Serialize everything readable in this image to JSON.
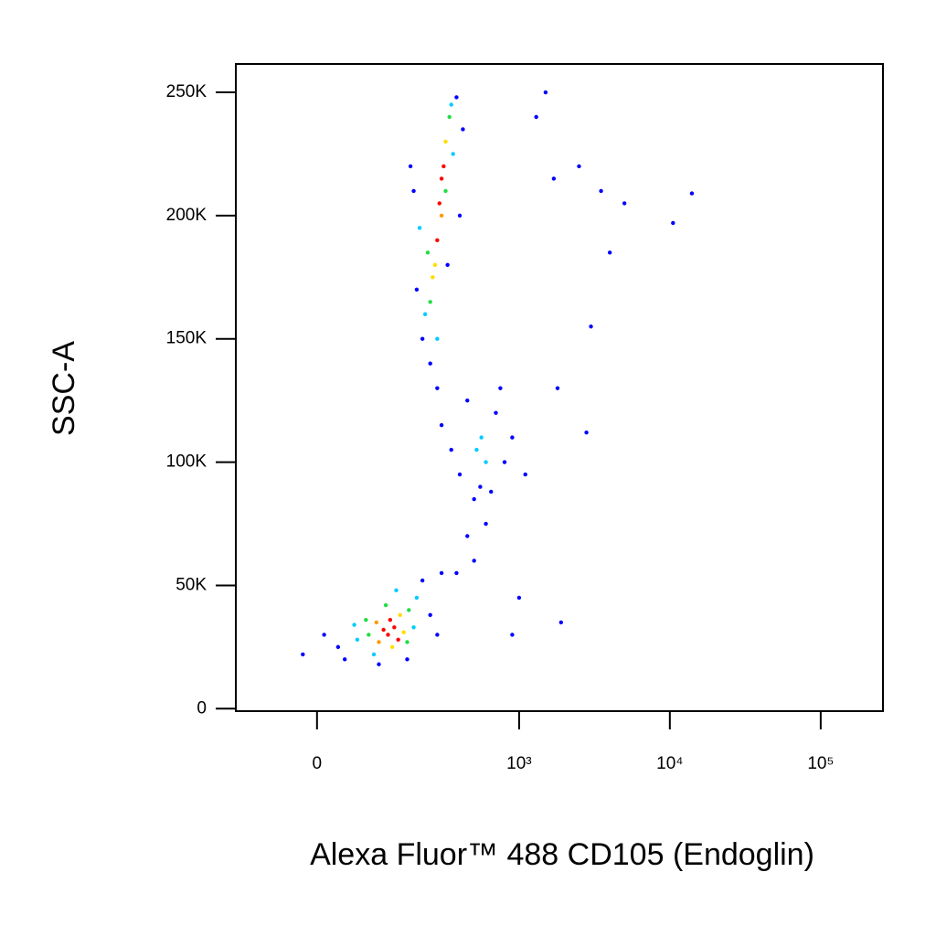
{
  "chart_data": {
    "type": "scatter",
    "xlabel": "Alexa Fluor™ 488 CD105 (Endoglin)",
    "ylabel": "SSC-A",
    "xscale": "biexponential",
    "xlim": [
      -145,
      258700
    ],
    "ylim": [
      -1000,
      261500
    ],
    "xticks": [
      0,
      {
        "value": 1000,
        "label": "10³"
      },
      {
        "value": 10000,
        "label": "10⁴"
      },
      {
        "value": 100000,
        "label": "10⁵"
      }
    ],
    "yticks": [
      0,
      {
        "value": 50000,
        "label": "50K"
      },
      {
        "value": 100000,
        "label": "100K"
      },
      {
        "value": 150000,
        "label": "150K"
      },
      {
        "value": 200000,
        "label": "200K"
      },
      {
        "value": 250000,
        "label": "250K"
      }
    ],
    "x": [
      120,
      135,
      145,
      125,
      110,
      100,
      150,
      160,
      95,
      130,
      80,
      175,
      115,
      170,
      75,
      60,
      200,
      140,
      190,
      55,
      90,
      30,
      40,
      250,
      220,
      170,
      10,
      280,
      100,
      -20,
      300,
      290,
      300,
      280,
      310,
      270,
      320,
      300,
      260,
      250,
      340,
      320,
      240,
      230,
      350,
      280,
      360,
      210,
      200,
      380,
      250,
      420,
      190,
      400,
      220,
      330,
      180,
      520,
      600,
      560,
      300,
      400,
      700,
      800,
      450,
      650,
      900,
      350,
      500,
      750,
      1100,
      280,
      450,
      500,
      600,
      380,
      550,
      1300,
      1500,
      1700,
      2500,
      3500,
      5000,
      14000,
      10500,
      4000,
      3000,
      1800,
      2800,
      1000,
      1900,
      900
    ],
    "values": [
      30000,
      33000,
      28000,
      36000,
      32000,
      27000,
      38000,
      31000,
      35000,
      25000,
      30000,
      40000,
      42000,
      27000,
      36000,
      28000,
      45000,
      48000,
      33000,
      34000,
      22000,
      25000,
      20000,
      38000,
      52000,
      20000,
      30000,
      30000,
      18000,
      22000,
      55000,
      205000,
      215000,
      190000,
      220000,
      180000,
      230000,
      200000,
      175000,
      165000,
      240000,
      210000,
      185000,
      160000,
      245000,
      150000,
      225000,
      195000,
      170000,
      248000,
      140000,
      235000,
      210000,
      200000,
      150000,
      180000,
      220000,
      105000,
      100000,
      110000,
      115000,
      95000,
      120000,
      100000,
      125000,
      88000,
      110000,
      105000,
      85000,
      130000,
      95000,
      130000,
      70000,
      60000,
      75000,
      55000,
      90000,
      240000,
      250000,
      215000,
      220000,
      210000,
      205000,
      209000,
      197000,
      185000,
      155000,
      130000,
      112000,
      45000,
      35000,
      30000
    ],
    "colors": [
      "#ff0000",
      "#ff0000",
      "#ff0000",
      "#ff0000",
      "#ff0000",
      "#ff9900",
      "#ffdd00",
      "#ffdd00",
      "#ff9900",
      "#ffdd00",
      "#22dd44",
      "#22dd44",
      "#22dd44",
      "#22dd44",
      "#22dd44",
      "#00ccff",
      "#00ccff",
      "#00ccff",
      "#00ccff",
      "#00ccff",
      "#00ccff",
      "#0000ff",
      "#0000ff",
      "#0000ff",
      "#0000ff",
      "#0000ff",
      "#0000ff",
      "#0000ff",
      "#0000ff",
      "#0000ff",
      "#0000ff",
      "#ff0000",
      "#ff0000",
      "#ff0000",
      "#ff0000",
      "#ffdd00",
      "#ffdd00",
      "#ff9900",
      "#ffdd00",
      "#22dd44",
      "#22dd44",
      "#22dd44",
      "#22dd44",
      "#00ccff",
      "#00ccff",
      "#00ccff",
      "#00ccff",
      "#00ccff",
      "#0000ff",
      "#0000ff",
      "#0000ff",
      "#0000ff",
      "#0000ff",
      "#0000ff",
      "#0000ff",
      "#0000ff",
      "#0000ff",
      "#00ccff",
      "#00ccff",
      "#00ccff",
      "#0000ff",
      "#0000ff",
      "#0000ff",
      "#0000ff",
      "#0000ff",
      "#0000ff",
      "#0000ff",
      "#0000ff",
      "#0000ff",
      "#0000ff",
      "#0000ff",
      "#0000ff",
      "#0000ff",
      "#0000ff",
      "#0000ff",
      "#0000ff",
      "#0000ff",
      "#0000ff",
      "#0000ff",
      "#0000ff",
      "#0000ff",
      "#0000ff",
      "#0000ff",
      "#0000ff",
      "#0000ff",
      "#0000ff",
      "#0000ff",
      "#0000ff",
      "#0000ff",
      "#0000ff",
      "#0000ff",
      "#0000ff"
    ]
  }
}
